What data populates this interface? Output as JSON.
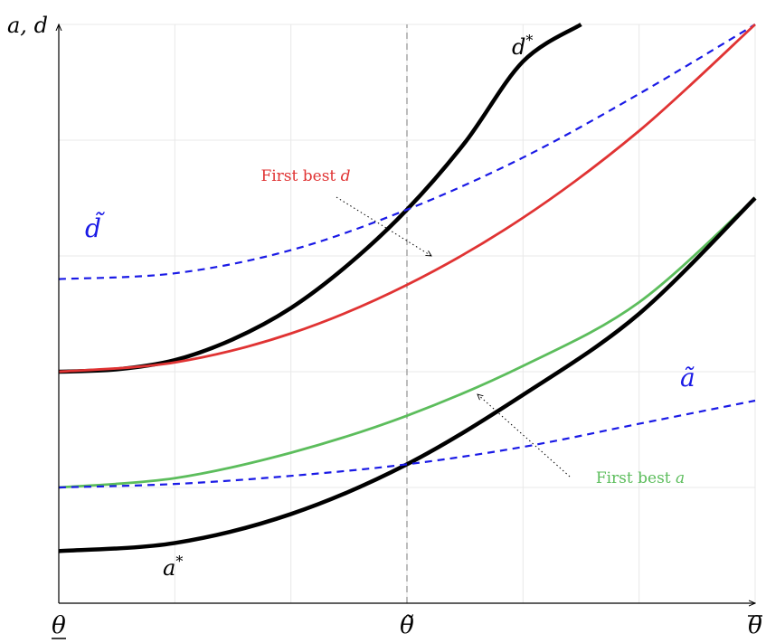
{
  "chart_data": {
    "type": "line",
    "title": "",
    "xlabel": "",
    "ylabel": "a, d",
    "xlim": [
      0,
      6
    ],
    "ylim": [
      0,
      5
    ],
    "grid": true,
    "x_tick_labels": [
      {
        "x": 0,
        "label": "θ",
        "style": "underline"
      },
      {
        "x": 3,
        "label": "θ̃",
        "style": "tilde"
      },
      {
        "x": 6,
        "label": "θ",
        "style": "overline"
      }
    ],
    "reference_lines": [
      {
        "axis": "x",
        "value": 3,
        "style": "dashed",
        "color": "#999999"
      }
    ],
    "series": [
      {
        "name": "d*",
        "color": "#000000",
        "style": "solid-thick",
        "x": [
          0,
          0.5,
          1,
          1.5,
          2,
          2.5,
          3,
          3.5,
          4,
          4.5
        ],
        "y": [
          2.0,
          2.02,
          2.1,
          2.28,
          2.55,
          2.93,
          3.4,
          3.98,
          4.68,
          5.0
        ]
      },
      {
        "name": "d̃",
        "color": "#1a1ae6",
        "style": "dashed",
        "x": [
          0,
          1,
          2,
          3,
          4,
          5,
          6
        ],
        "y": [
          2.8,
          2.85,
          3.05,
          3.4,
          3.85,
          4.4,
          5.0
        ]
      },
      {
        "name": "First best d",
        "color": "#e03333",
        "style": "solid",
        "x": [
          0,
          1,
          2,
          3,
          4,
          5,
          6
        ],
        "y": [
          2.0,
          2.08,
          2.33,
          2.75,
          3.33,
          4.08,
          5.0
        ]
      },
      {
        "name": "First best a",
        "color": "#5cbd5c",
        "style": "solid",
        "x": [
          0,
          1,
          2,
          3,
          4,
          5,
          6
        ],
        "y": [
          1.0,
          1.08,
          1.3,
          1.62,
          2.05,
          2.6,
          3.5
        ]
      },
      {
        "name": "a*",
        "color": "#000000",
        "style": "solid-thick",
        "x": [
          0,
          1,
          2,
          3,
          4,
          5,
          6
        ],
        "y": [
          0.45,
          0.52,
          0.77,
          1.2,
          1.8,
          2.5,
          3.5
        ]
      },
      {
        "name": "ã",
        "color": "#1a1ae6",
        "style": "dashed",
        "x": [
          0,
          1,
          2,
          3,
          4,
          5,
          6
        ],
        "y": [
          1.0,
          1.03,
          1.1,
          1.2,
          1.35,
          1.55,
          1.75
        ]
      }
    ],
    "annotations": [
      {
        "id": "d_star",
        "text": "d*",
        "color": "#000000"
      },
      {
        "id": "d_tilde",
        "text": "d̃",
        "color": "#1a1ae6"
      },
      {
        "id": "first_best_d",
        "text": "First best d",
        "color": "#e03333"
      },
      {
        "id": "a_tilde",
        "text": "ã",
        "color": "#1a1ae6"
      },
      {
        "id": "first_best_a",
        "text": "First best a",
        "color": "#5cbd5c"
      },
      {
        "id": "a_star",
        "text": "a*",
        "color": "#000000"
      }
    ]
  }
}
